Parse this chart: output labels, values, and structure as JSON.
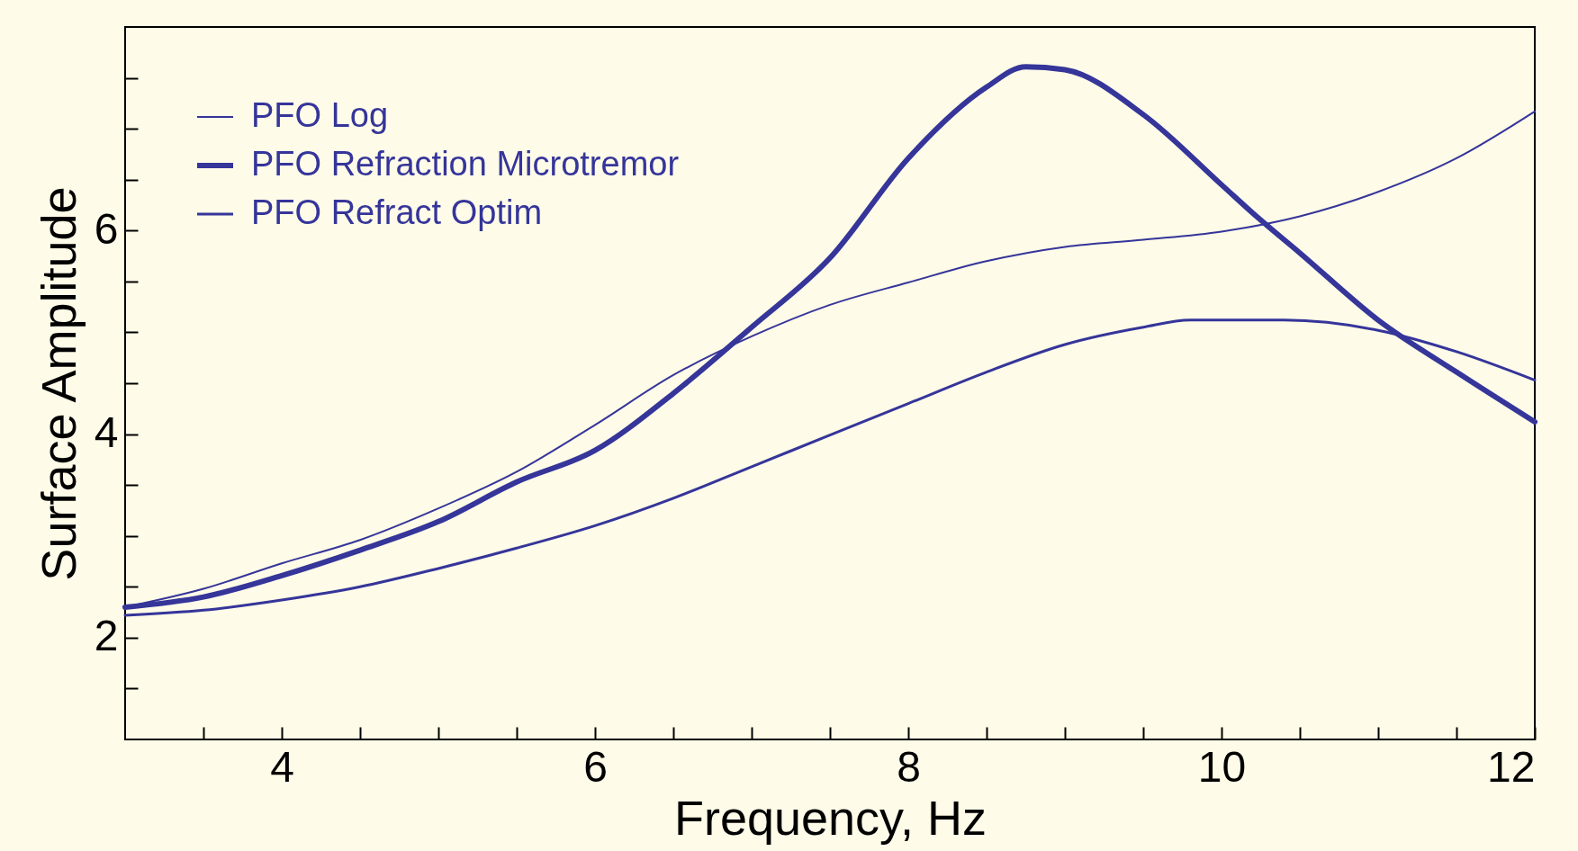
{
  "chart_data": {
    "type": "line",
    "xlabel": "Frequency, Hz",
    "ylabel": "Surface Amplitude",
    "legend": "top left",
    "grid": false,
    "xlim": [
      3,
      12
    ],
    "ylim": [
      1,
      8
    ],
    "xticks": [
      {
        "value": 3.5,
        "label": null
      },
      4,
      {
        "value": 4.5,
        "label": null
      },
      {
        "value": 5,
        "label": null
      },
      {
        "value": 5.5,
        "label": null
      },
      6,
      {
        "value": 6.5,
        "label": null
      },
      {
        "value": 7,
        "label": null
      },
      {
        "value": 7.5,
        "label": null
      },
      8,
      {
        "value": 8.5,
        "label": null
      },
      {
        "value": 9,
        "label": null
      },
      {
        "value": 9.5,
        "label": null
      },
      10,
      {
        "value": 10.5,
        "label": null
      },
      {
        "value": 11,
        "label": null
      },
      {
        "value": 11.5,
        "label": null
      },
      12
    ],
    "yticks": [
      {
        "value": 1.5,
        "label": null
      },
      2,
      {
        "value": 2.5,
        "label": null
      },
      {
        "value": 3,
        "label": null
      },
      {
        "value": 3.5,
        "label": null
      },
      4,
      {
        "value": 4.5,
        "label": null
      },
      {
        "value": 5,
        "label": null
      },
      {
        "value": 5.5,
        "label": null
      },
      6,
      {
        "value": 6.5,
        "label": null
      },
      {
        "value": 7,
        "label": null
      },
      {
        "value": 7.5,
        "label": null
      }
    ],
    "series": [
      {
        "name": "PFO Log",
        "color": "#35359a",
        "x": [
          3,
          3.5,
          4,
          4.5,
          5,
          5.5,
          6,
          6.5,
          7,
          7.5,
          8,
          8.5,
          9,
          9.5,
          10,
          10.5,
          11,
          11.5,
          12
        ],
        "values": [
          2.3,
          2.48,
          2.73,
          2.96,
          3.27,
          3.63,
          4.09,
          4.58,
          4.96,
          5.27,
          5.49,
          5.7,
          5.84,
          5.91,
          5.99,
          6.14,
          6.38,
          6.71,
          7.17
        ]
      },
      {
        "name": "PFO Refraction Microtremor",
        "color": "#35359a",
        "x": [
          3,
          3.5,
          4,
          4.5,
          5,
          5.5,
          6,
          6.5,
          7,
          7.5,
          8,
          8.5,
          8.75,
          9,
          9.5,
          10,
          10.2,
          10.5,
          11,
          11.5,
          12
        ],
        "values": [
          2.3,
          2.4,
          2.61,
          2.86,
          3.14,
          3.53,
          3.84,
          4.4,
          5.05,
          5.73,
          6.71,
          7.41,
          7.61,
          7.58,
          7.14,
          6.45,
          6.17,
          5.78,
          5.12,
          4.61,
          4.12
        ]
      },
      {
        "name": "PFO Refract Optim",
        "color": "#35359a",
        "x": [
          3,
          3.5,
          4,
          4.5,
          5,
          5.5,
          6,
          6.5,
          7,
          7.5,
          8,
          8.5,
          9,
          9.5,
          9.8,
          10,
          10.4,
          11,
          11.5,
          12
        ],
        "values": [
          2.22,
          2.27,
          2.37,
          2.5,
          2.68,
          2.88,
          3.1,
          3.37,
          3.68,
          3.99,
          4.3,
          4.61,
          4.88,
          5.05,
          5.12,
          5.12,
          5.12,
          5.02,
          4.81,
          4.53
        ]
      }
    ]
  }
}
